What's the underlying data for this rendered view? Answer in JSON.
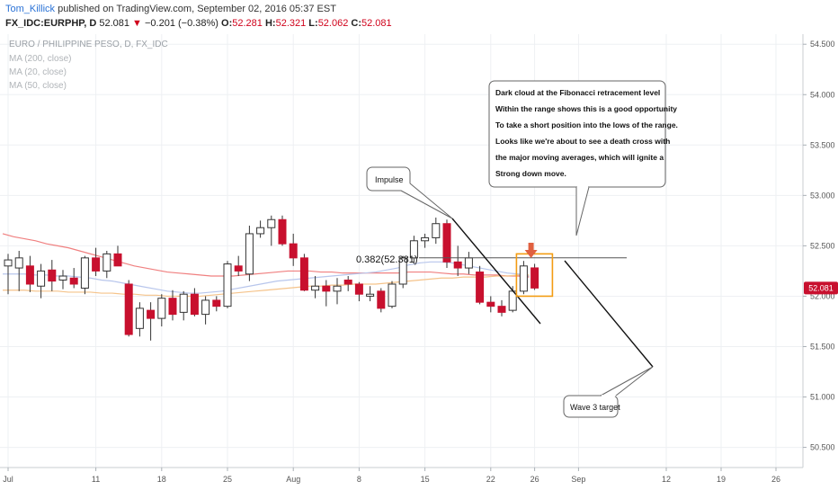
{
  "header": {
    "author": "Tom_Killick",
    "published_text": "published on TradingView.com, September 02, 2016 05:37 EST",
    "symbol": "FX_IDC:EURPHP, D",
    "last": "52.081",
    "change": "−0.201 (−0.38%)",
    "o_label": "O:",
    "o_value": "52.281",
    "h_label": "H:",
    "h_value": "52.321",
    "l_label": "L:",
    "l_value": "52.062",
    "c_label": "C:",
    "c_value": "52.081",
    "down_arrow": "▼"
  },
  "legend": {
    "title": "EURO / PHILIPPINE PESO, D, FX_IDC",
    "ma200": "MA (200, close)",
    "ma20": "MA (20, close)",
    "ma50": "MA (50, close)"
  },
  "annotations": {
    "callout_lines": [
      "Dark cloud at the Fibonacci retracement level",
      "Within the range shows this is a good opportunity",
      "To take a short position into the lows of the range.",
      "Looks like we're about to see a death cross with",
      "the major moving averages, which will ignite a",
      "Strong down move."
    ],
    "impulse": "Impulse",
    "fib": "0.382(52.381)",
    "wave3": "Wave 3 target",
    "price_tag": "52.081"
  },
  "colors": {
    "up": "#ffffff",
    "up_border": "#333333",
    "down": "#c8102e",
    "ma200": "#f08080",
    "ma20": "#b8c6ec",
    "ma50": "#f5c38a",
    "highlight": "#f39c12",
    "arrow": "#e06040",
    "price_tag_bg": "#c8102e"
  },
  "chart_data": {
    "type": "candlestick",
    "y_axis": {
      "min": 50.3,
      "max": 54.6,
      "ticks": [
        "54.500",
        "54.000",
        "53.500",
        "53.000",
        "52.500",
        "52.000",
        "51.500",
        "51.000",
        "50.500"
      ],
      "tick_values": [
        54.5,
        54.0,
        53.5,
        53.0,
        52.5,
        52.0,
        51.5,
        51.0,
        50.5
      ]
    },
    "x_axis": {
      "labels": [
        "Jul",
        "11",
        "18",
        "25",
        "Aug",
        "8",
        "15",
        "22",
        "26",
        "Sep",
        "12",
        "19",
        "26"
      ],
      "label_index": [
        0,
        8,
        14,
        20,
        26,
        32,
        38,
        44,
        48,
        52,
        60,
        65,
        70
      ]
    },
    "candles": [
      {
        "o": 52.3,
        "h": 52.42,
        "l": 52.02,
        "c": 52.36
      },
      {
        "o": 52.28,
        "h": 52.45,
        "l": 52.05,
        "c": 52.38
      },
      {
        "o": 52.3,
        "h": 52.4,
        "l": 52.04,
        "c": 52.12
      },
      {
        "o": 52.1,
        "h": 52.32,
        "l": 51.98,
        "c": 52.25
      },
      {
        "o": 52.26,
        "h": 52.36,
        "l": 52.05,
        "c": 52.15
      },
      {
        "o": 52.16,
        "h": 52.26,
        "l": 52.07,
        "c": 52.2
      },
      {
        "o": 52.18,
        "h": 52.28,
        "l": 52.08,
        "c": 52.12
      },
      {
        "o": 52.08,
        "h": 52.4,
        "l": 52.02,
        "c": 52.38
      },
      {
        "o": 52.38,
        "h": 52.48,
        "l": 52.2,
        "c": 52.25
      },
      {
        "o": 52.25,
        "h": 52.45,
        "l": 52.18,
        "c": 52.42
      },
      {
        "o": 52.42,
        "h": 52.5,
        "l": 52.3,
        "c": 52.3
      },
      {
        "o": 52.12,
        "h": 52.16,
        "l": 51.6,
        "c": 51.62
      },
      {
        "o": 51.68,
        "h": 51.94,
        "l": 51.6,
        "c": 51.88
      },
      {
        "o": 51.86,
        "h": 51.94,
        "l": 51.56,
        "c": 51.78
      },
      {
        "o": 51.78,
        "h": 52.02,
        "l": 51.7,
        "c": 51.98
      },
      {
        "o": 51.98,
        "h": 52.06,
        "l": 51.76,
        "c": 51.82
      },
      {
        "o": 51.84,
        "h": 52.05,
        "l": 51.76,
        "c": 52.02
      },
      {
        "o": 52.02,
        "h": 52.08,
        "l": 51.8,
        "c": 51.82
      },
      {
        "o": 51.82,
        "h": 52.0,
        "l": 51.72,
        "c": 51.96
      },
      {
        "o": 51.96,
        "h": 52.0,
        "l": 51.85,
        "c": 51.9
      },
      {
        "o": 51.9,
        "h": 52.35,
        "l": 51.88,
        "c": 52.32
      },
      {
        "o": 52.3,
        "h": 52.4,
        "l": 52.2,
        "c": 52.25
      },
      {
        "o": 52.22,
        "h": 52.7,
        "l": 52.15,
        "c": 52.62
      },
      {
        "o": 52.62,
        "h": 52.75,
        "l": 52.58,
        "c": 52.68
      },
      {
        "o": 52.68,
        "h": 52.8,
        "l": 52.5,
        "c": 52.76
      },
      {
        "o": 52.76,
        "h": 52.8,
        "l": 52.5,
        "c": 52.52
      },
      {
        "o": 52.52,
        "h": 52.62,
        "l": 52.3,
        "c": 52.38
      },
      {
        "o": 52.38,
        "h": 52.42,
        "l": 52.05,
        "c": 52.06
      },
      {
        "o": 52.06,
        "h": 52.2,
        "l": 51.98,
        "c": 52.1
      },
      {
        "o": 52.1,
        "h": 52.16,
        "l": 51.9,
        "c": 52.05
      },
      {
        "o": 52.05,
        "h": 52.18,
        "l": 51.92,
        "c": 52.1
      },
      {
        "o": 52.16,
        "h": 52.2,
        "l": 52.05,
        "c": 52.12
      },
      {
        "o": 52.12,
        "h": 52.14,
        "l": 51.95,
        "c": 52.02
      },
      {
        "o": 52.0,
        "h": 52.1,
        "l": 51.95,
        "c": 52.02
      },
      {
        "o": 52.05,
        "h": 52.08,
        "l": 51.84,
        "c": 51.88
      },
      {
        "o": 51.9,
        "h": 52.15,
        "l": 51.88,
        "c": 52.12
      },
      {
        "o": 52.12,
        "h": 52.4,
        "l": 52.08,
        "c": 52.38
      },
      {
        "o": 52.38,
        "h": 52.6,
        "l": 52.32,
        "c": 52.55
      },
      {
        "o": 52.55,
        "h": 52.62,
        "l": 52.48,
        "c": 52.58
      },
      {
        "o": 52.58,
        "h": 52.78,
        "l": 52.52,
        "c": 52.72
      },
      {
        "o": 52.72,
        "h": 52.76,
        "l": 52.28,
        "c": 52.34
      },
      {
        "o": 52.34,
        "h": 52.5,
        "l": 52.2,
        "c": 52.28
      },
      {
        "o": 52.28,
        "h": 52.44,
        "l": 52.22,
        "c": 52.38
      },
      {
        "o": 52.24,
        "h": 52.3,
        "l": 51.92,
        "c": 51.94
      },
      {
        "o": 51.94,
        "h": 52.0,
        "l": 51.84,
        "c": 51.9
      },
      {
        "o": 51.9,
        "h": 51.96,
        "l": 51.8,
        "c": 51.84
      },
      {
        "o": 51.86,
        "h": 52.1,
        "l": 51.84,
        "c": 52.05
      },
      {
        "o": 52.05,
        "h": 52.35,
        "l": 52.02,
        "c": 52.3
      },
      {
        "o": 52.281,
        "h": 52.321,
        "l": 52.062,
        "c": 52.081
      }
    ],
    "ma200": [
      52.62,
      52.59,
      52.57,
      52.55,
      52.52,
      52.5,
      52.48,
      52.45,
      52.42,
      52.39,
      52.36,
      52.33,
      52.3,
      52.28,
      52.26,
      52.24,
      52.23,
      52.22,
      52.21,
      52.2,
      52.2,
      52.2,
      52.21,
      52.22,
      52.23,
      52.24,
      52.25,
      52.25,
      52.25,
      52.24,
      52.24,
      52.23,
      52.23,
      52.23,
      52.23,
      52.23,
      52.23,
      52.24,
      52.24,
      52.24,
      52.23,
      52.22,
      52.22,
      52.21,
      52.21,
      52.21,
      52.2,
      52.2,
      52.19
    ],
    "ma20": [
      52.22,
      52.22,
      52.22,
      52.21,
      52.21,
      52.2,
      52.2,
      52.19,
      52.18,
      52.16,
      52.15,
      52.13,
      52.11,
      52.09,
      52.07,
      52.05,
      52.04,
      52.03,
      52.03,
      52.04,
      52.05,
      52.07,
      52.09,
      52.11,
      52.13,
      52.15,
      52.16,
      52.17,
      52.18,
      52.19,
      52.2,
      52.21,
      52.22,
      52.23,
      52.24,
      52.26,
      52.28,
      52.31,
      52.33,
      52.34,
      52.34,
      52.33,
      52.31,
      52.29,
      52.27,
      52.25,
      52.23,
      52.22,
      52.2
    ],
    "ma50": [
      52.06,
      52.06,
      52.06,
      52.05,
      52.05,
      52.05,
      52.04,
      52.04,
      52.04,
      52.03,
      52.03,
      52.02,
      52.02,
      52.01,
      52.01,
      52.0,
      52.0,
      52.0,
      52.0,
      52.01,
      52.02,
      52.03,
      52.04,
      52.05,
      52.06,
      52.07,
      52.08,
      52.09,
      52.1,
      52.1,
      52.11,
      52.11,
      52.12,
      52.12,
      52.12,
      52.13,
      52.14,
      52.15,
      52.16,
      52.17,
      52.18,
      52.18,
      52.19,
      52.19,
      52.19,
      52.2,
      52.2,
      52.21,
      52.21
    ],
    "fib_level": 52.381
  }
}
